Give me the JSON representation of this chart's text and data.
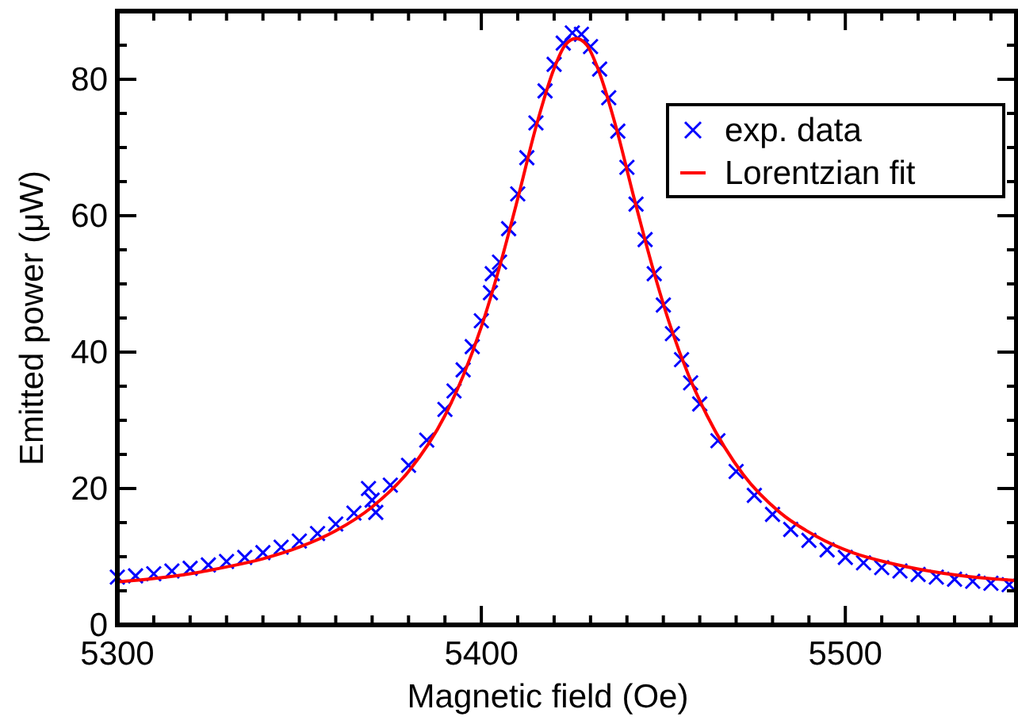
{
  "chart_data": {
    "type": "scatter",
    "xlabel": "Magnetic field (Oe)",
    "ylabel": "Emitted power (μW)",
    "xlim": [
      5300,
      5547
    ],
    "ylim": [
      0,
      90
    ],
    "xticks": [
      5300,
      {
        "value": 5310,
        "label": null
      },
      {
        "value": 5320,
        "label": null
      },
      {
        "value": 5330,
        "label": null
      },
      {
        "value": 5340,
        "label": null
      },
      {
        "value": 5350,
        "label": null
      },
      {
        "value": 5360,
        "label": null
      },
      {
        "value": 5370,
        "label": null
      },
      {
        "value": 5380,
        "label": null
      },
      {
        "value": 5390,
        "label": null
      },
      5400,
      {
        "value": 5410,
        "label": null
      },
      {
        "value": 5420,
        "label": null
      },
      {
        "value": 5430,
        "label": null
      },
      {
        "value": 5440,
        "label": null
      },
      {
        "value": 5450,
        "label": null
      },
      {
        "value": 5460,
        "label": null
      },
      {
        "value": 5470,
        "label": null
      },
      {
        "value": 5480,
        "label": null
      },
      {
        "value": 5490,
        "label": null
      },
      5500,
      {
        "value": 5510,
        "label": null
      },
      {
        "value": 5520,
        "label": null
      },
      {
        "value": 5530,
        "label": null
      },
      {
        "value": 5540,
        "label": null
      }
    ],
    "yticks": [
      0,
      {
        "value": 5,
        "label": null
      },
      {
        "value": 10,
        "label": null
      },
      {
        "value": 15,
        "label": null
      },
      20,
      {
        "value": 25,
        "label": null
      },
      {
        "value": 30,
        "label": null
      },
      {
        "value": 35,
        "label": null
      },
      40,
      {
        "value": 45,
        "label": null
      },
      {
        "value": 50,
        "label": null
      },
      {
        "value": 55,
        "label": null
      },
      60,
      {
        "value": 65,
        "label": null
      },
      {
        "value": 70,
        "label": null
      },
      {
        "value": 75,
        "label": null
      },
      80,
      {
        "value": 85,
        "label": null
      }
    ],
    "grid": false,
    "legend": "top right",
    "series": [
      {
        "name": "exp. data",
        "marker": "cross",
        "color": "#0000ff",
        "x": [
          5300,
          5305,
          5310,
          5315,
          5320,
          5325,
          5330,
          5335,
          5340,
          5345,
          5350,
          5355,
          5360,
          5365,
          5369,
          5370,
          5371,
          5375,
          5380,
          5385,
          5390,
          5392.5,
          5395,
          5397.5,
          5400,
          5402.5,
          5403,
          5405,
          5407.5,
          5410,
          5412.5,
          5415,
          5417.5,
          5420,
          5422.5,
          5425,
          5427.5,
          5430,
          5432.5,
          5435,
          5437.5,
          5440,
          5442.5,
          5445,
          5447.5,
          5450,
          5452.5,
          5455,
          5457.5,
          5460,
          5465,
          5470,
          5475,
          5480,
          5485,
          5490,
          5495,
          5500,
          5505,
          5510,
          5515,
          5520,
          5525,
          5530,
          5535,
          5540,
          5545
        ],
        "values": [
          7.0,
          7.2,
          7.5,
          7.9,
          8.3,
          8.8,
          9.3,
          9.9,
          10.6,
          11.4,
          12.3,
          13.4,
          14.8,
          16.4,
          20,
          18.3,
          16.5,
          20.5,
          23.4,
          27.1,
          31.6,
          34.3,
          37.4,
          40.8,
          44.6,
          48.7,
          51.5,
          53.2,
          58.1,
          63.2,
          68.5,
          73.6,
          78.3,
          82.2,
          85.3,
          86.8,
          86.6,
          84.8,
          81.5,
          77.3,
          72.4,
          67.1,
          61.7,
          56.5,
          51.5,
          46.9,
          42.7,
          38.9,
          35.5,
          32.4,
          27,
          22.5,
          19,
          16.2,
          14,
          12.4,
          11,
          9.9,
          9.1,
          8.4,
          7.9,
          7.4,
          7,
          6.7,
          6.4,
          6.1,
          5.9
        ]
      },
      {
        "name": "Lorentzian fit",
        "type": "line",
        "line_style": "solid",
        "color": "#ff0000",
        "x": [
          5300,
          5310,
          5320,
          5330,
          5340,
          5350,
          5360,
          5370,
          5380,
          5390,
          5395,
          5400,
          5405,
          5410,
          5415,
          5420,
          5423,
          5426,
          5429,
          5432,
          5437,
          5442,
          5447,
          5452,
          5457,
          5462,
          5472,
          5482,
          5492,
          5502,
          5512,
          5522,
          5532,
          5542,
          5547
        ],
        "values": [
          6.3,
          6.8,
          7.5,
          8.5,
          9.7,
          11.4,
          13.8,
          17.3,
          22.5,
          30.7,
          36.5,
          43.7,
          52.5,
          62.5,
          73,
          81.6,
          85,
          86,
          85,
          81.6,
          73,
          62.5,
          52.5,
          43.7,
          36.5,
          30.7,
          22,
          16.5,
          13,
          10.6,
          9.1,
          8,
          7.2,
          6.7,
          6.5
        ]
      }
    ]
  }
}
